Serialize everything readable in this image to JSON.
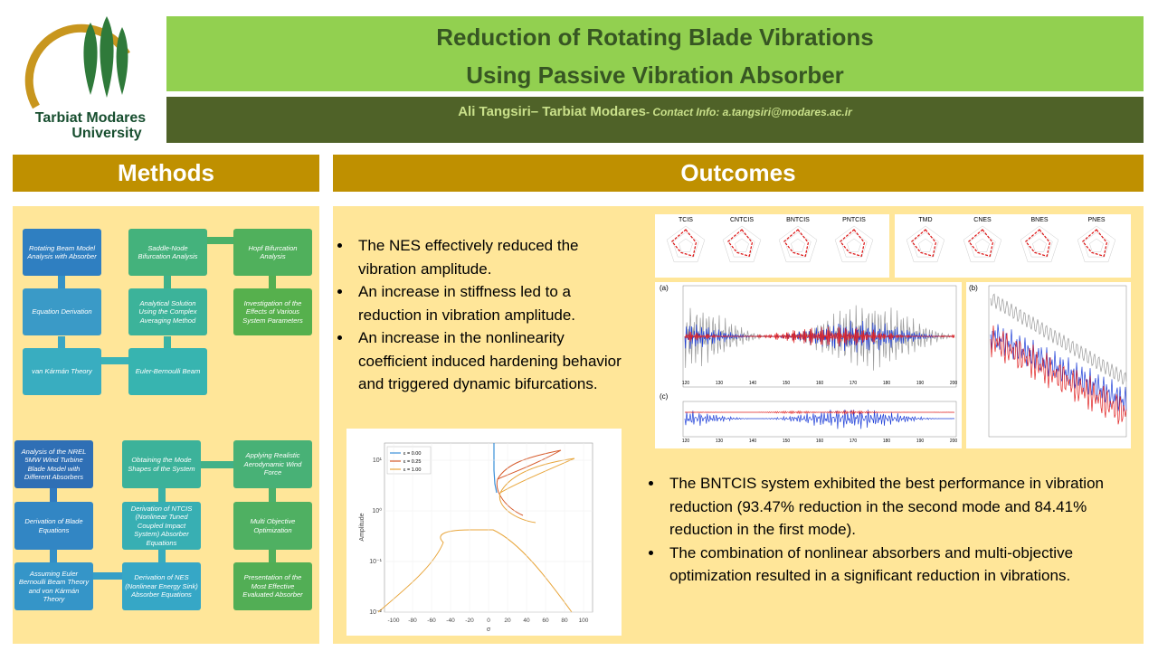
{
  "logo": {
    "line1": "Tarbiat Modares",
    "line2": "University"
  },
  "header": {
    "title_line1": "Reduction of Rotating Blade Vibrations",
    "title_line2": "Using Passive Vibration Absorber",
    "authors": "Ali Tangsiri– Tarbiat Modares",
    "contact": "- Contact Info: a.tangsiri@modares.ac.ir"
  },
  "methods": {
    "title": "Methods",
    "flow1": [
      "Rotating Beam Model Analysis with Absorber",
      "Equation Derivation",
      "van Kármán Theory",
      "Euler-Bernoulli Beam",
      "Analytical Solution Using the Complex Averaging Method",
      "Saddle-Node Bifurcation Analysis",
      "Hopf Bifurcation Analysis",
      "Investigation of the Effects of Various System Parameters"
    ],
    "flow2": [
      "Analysis of the NREL 5MW Wind Turbine Blade Model with Different Absorbers",
      "Derivation of Blade Equations",
      "Assuming Euler Bernoulli Beam Theory and von Kármán Theory",
      "Derivation of NES (Nonlinear Energy Sink) Absorber Equations",
      "Derivation of NTCIS (Nonlinear Tuned Coupled Impact System) Absorber Equations",
      "Obtaining the Mode Shapes of the System",
      "Applying Realistic Aerodynamic Wind Force",
      "Multi Objective Optimization",
      "Presentation of the Most Effective Evaluated Absorber"
    ]
  },
  "outcomes": {
    "title": "Outcomes",
    "bullets1": [
      "The NES effectively reduced the vibration amplitude.",
      "An increase in stiffness led to a reduction in vibration amplitude.",
      "An increase in the nonlinearity coefficient induced hardening behavior and triggered dynamic bifurcations."
    ],
    "bullets2": [
      "The BNTCIS system exhibited the best performance in vibration reduction (93.47% reduction in the second mode and 84.41% reduction in the first mode).",
      "The combination of nonlinear absorbers and multi-objective optimization resulted in a significant reduction in vibrations."
    ],
    "radar_titles": [
      "TCIS",
      "CNTCIS",
      "BNTCIS",
      "PNTCIS",
      "TMD",
      "CNES",
      "BNES",
      "PNES"
    ],
    "time_panels": [
      "(a)",
      "(b)",
      "(c)"
    ],
    "time_xticks": [
      120,
      130,
      140,
      150,
      160,
      170,
      180,
      190,
      200
    ],
    "amplitude_plot": {
      "y_label": "Amplitude",
      "x_label": "σ",
      "legend": [
        "ε = 0.00",
        "ε = 0.25",
        "ε = 1.00"
      ],
      "xticks": [
        -100,
        -80,
        -60,
        -40,
        -20,
        0,
        20,
        40,
        60,
        80,
        100
      ],
      "yticks": [
        {
          "value": 0.01,
          "label": "10⁻²"
        },
        {
          "value": 0.1,
          "label": "10⁻¹"
        },
        {
          "value": 1,
          "label": "10⁰"
        },
        {
          "value": 10,
          "label": "10¹"
        }
      ]
    }
  }
}
